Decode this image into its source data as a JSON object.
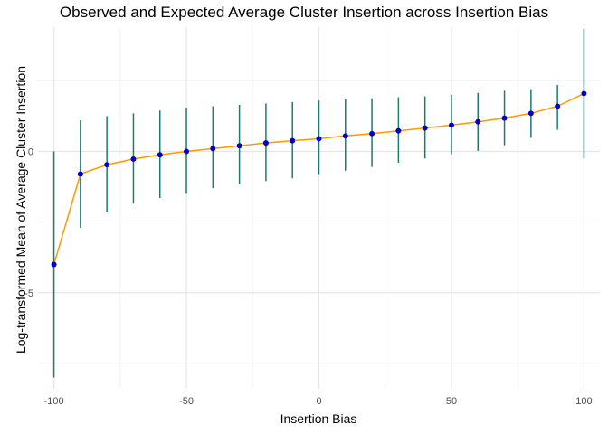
{
  "chart_data": {
    "type": "line",
    "title": "Observed and Expected Average Cluster Insertion across Insertion Bias",
    "xlabel": "Insertion Bias",
    "ylabel": "Log-transformed Mean of Average Cluster Insertion",
    "xlim": [
      -106,
      106
    ],
    "ylim": [
      -8.4,
      4.4
    ],
    "x_ticks": [
      -100,
      -50,
      0,
      50,
      100
    ],
    "x_tick_labels": [
      "-100",
      "-50",
      "0",
      "50",
      "100"
    ],
    "y_ticks": [
      -5,
      0
    ],
    "y_tick_labels": [
      "-5",
      "0"
    ],
    "grid": true,
    "series": [
      {
        "x": [
          -100,
          -90,
          -80,
          -70,
          -60,
          -50,
          -40,
          -30,
          -20,
          -10,
          0,
          10,
          20,
          30,
          40,
          50,
          60,
          70,
          80,
          90,
          100
        ],
        "observed": [
          -4.0,
          -0.8,
          -0.47,
          -0.27,
          -0.12,
          0.0,
          0.1,
          0.2,
          0.3,
          0.38,
          0.45,
          0.55,
          0.63,
          0.73,
          0.83,
          0.93,
          1.05,
          1.18,
          1.35,
          1.6,
          2.05
        ],
        "lower": [
          -8.0,
          -2.7,
          -2.15,
          -1.85,
          -1.65,
          -1.5,
          -1.3,
          -1.15,
          -1.05,
          -0.95,
          -0.8,
          -0.68,
          -0.55,
          -0.4,
          -0.25,
          -0.1,
          0.02,
          0.22,
          0.48,
          0.77,
          -0.25
        ],
        "upper": [
          0.0,
          1.1,
          1.25,
          1.35,
          1.45,
          1.55,
          1.6,
          1.65,
          1.7,
          1.75,
          1.8,
          1.85,
          1.88,
          1.92,
          1.95,
          2.0,
          2.07,
          2.15,
          2.2,
          2.35,
          4.35
        ]
      }
    ],
    "colors": {
      "line": "#ff9900",
      "points": "#0000cd",
      "error_bars": "#1b7a73",
      "grid_major": "#e6e6e6",
      "grid_minor": "#f2f2f2"
    }
  }
}
